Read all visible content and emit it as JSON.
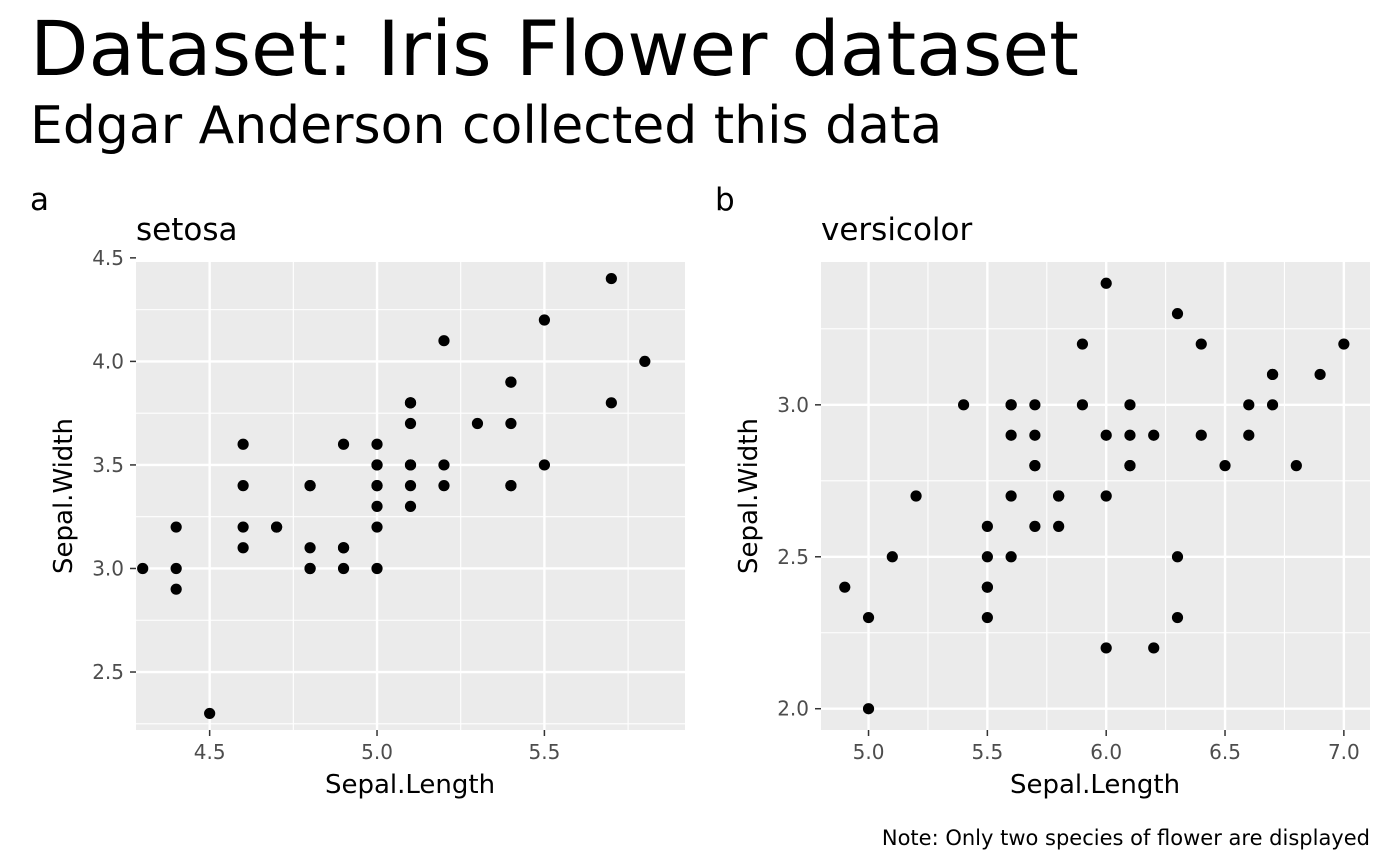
{
  "title": "Dataset: Iris Flower dataset",
  "subtitle": "Edgar Anderson collected this data",
  "caption": "Note: Only two species of flower are displayed",
  "colors": {
    "panel_bg": "#ebebeb",
    "grid": "#ffffff",
    "point": "#000000",
    "tick_text": "#4d4d4d"
  },
  "chart_data": [
    {
      "type": "scatter",
      "tag": "a",
      "title": "setosa",
      "xlabel": "Sepal.Length",
      "ylabel": "Sepal.Width",
      "xlim": [
        4.28,
        5.92
      ],
      "ylim": [
        2.22,
        4.48
      ],
      "xticks": [
        4.5,
        5.0,
        5.5
      ],
      "xtick_labels": [
        "4.5",
        "5.0",
        "5.5"
      ],
      "yticks": [
        2.5,
        3.0,
        3.5,
        4.0,
        4.5
      ],
      "ytick_labels": [
        "2.5",
        "3.0",
        "3.5",
        "4.0",
        "4.5"
      ],
      "grid": true,
      "points": [
        [
          5.1,
          3.5
        ],
        [
          4.9,
          3.0
        ],
        [
          4.7,
          3.2
        ],
        [
          4.6,
          3.1
        ],
        [
          5.0,
          3.6
        ],
        [
          5.4,
          3.9
        ],
        [
          4.6,
          3.4
        ],
        [
          5.0,
          3.4
        ],
        [
          4.4,
          2.9
        ],
        [
          4.9,
          3.1
        ],
        [
          5.4,
          3.7
        ],
        [
          4.8,
          3.4
        ],
        [
          4.8,
          3.0
        ],
        [
          4.3,
          3.0
        ],
        [
          5.8,
          4.0
        ],
        [
          5.7,
          4.4
        ],
        [
          5.4,
          3.9
        ],
        [
          5.1,
          3.5
        ],
        [
          5.7,
          3.8
        ],
        [
          5.1,
          3.8
        ],
        [
          5.4,
          3.4
        ],
        [
          5.1,
          3.7
        ],
        [
          4.6,
          3.6
        ],
        [
          5.1,
          3.3
        ],
        [
          4.8,
          3.4
        ],
        [
          5.0,
          3.0
        ],
        [
          5.0,
          3.4
        ],
        [
          5.2,
          3.5
        ],
        [
          5.2,
          3.4
        ],
        [
          4.7,
          3.2
        ],
        [
          4.8,
          3.1
        ],
        [
          5.4,
          3.4
        ],
        [
          5.2,
          4.1
        ],
        [
          5.5,
          4.2
        ],
        [
          4.9,
          3.1
        ],
        [
          5.0,
          3.2
        ],
        [
          5.5,
          3.5
        ],
        [
          4.9,
          3.6
        ],
        [
          4.4,
          3.0
        ],
        [
          5.1,
          3.4
        ],
        [
          5.0,
          3.5
        ],
        [
          4.5,
          2.3
        ],
        [
          4.4,
          3.2
        ],
        [
          5.0,
          3.5
        ],
        [
          5.1,
          3.8
        ],
        [
          4.8,
          3.0
        ],
        [
          5.1,
          3.8
        ],
        [
          4.6,
          3.2
        ],
        [
          5.3,
          3.7
        ],
        [
          5.0,
          3.3
        ]
      ]
    },
    {
      "type": "scatter",
      "tag": "b",
      "title": "versicolor",
      "xlabel": "Sepal.Length",
      "ylabel": "Sepal.Width",
      "xlim": [
        4.8,
        7.11
      ],
      "ylim": [
        1.93,
        3.47
      ],
      "xticks": [
        5.0,
        5.5,
        6.0,
        6.5,
        7.0
      ],
      "xtick_labels": [
        "5.0",
        "5.5",
        "6.0",
        "6.5",
        "7.0"
      ],
      "yticks": [
        2.0,
        2.5,
        3.0
      ],
      "ytick_labels": [
        "2.0",
        "2.5",
        "3.0"
      ],
      "grid": true,
      "points": [
        [
          7.0,
          3.2
        ],
        [
          6.4,
          3.2
        ],
        [
          6.9,
          3.1
        ],
        [
          5.5,
          2.3
        ],
        [
          6.5,
          2.8
        ],
        [
          5.7,
          2.8
        ],
        [
          6.3,
          3.3
        ],
        [
          4.9,
          2.4
        ],
        [
          6.6,
          2.9
        ],
        [
          5.2,
          2.7
        ],
        [
          5.0,
          2.0
        ],
        [
          5.9,
          3.0
        ],
        [
          6.0,
          2.2
        ],
        [
          6.1,
          2.9
        ],
        [
          5.6,
          2.9
        ],
        [
          6.7,
          3.1
        ],
        [
          5.6,
          3.0
        ],
        [
          5.8,
          2.7
        ],
        [
          6.2,
          2.2
        ],
        [
          5.6,
          2.5
        ],
        [
          5.9,
          3.2
        ],
        [
          6.1,
          2.8
        ],
        [
          6.3,
          2.5
        ],
        [
          6.1,
          2.8
        ],
        [
          6.4,
          2.9
        ],
        [
          6.6,
          3.0
        ],
        [
          6.8,
          2.8
        ],
        [
          6.7,
          3.0
        ],
        [
          6.0,
          2.9
        ],
        [
          5.7,
          2.6
        ],
        [
          5.5,
          2.4
        ],
        [
          5.5,
          2.4
        ],
        [
          5.8,
          2.7
        ],
        [
          6.0,
          2.7
        ],
        [
          5.4,
          3.0
        ],
        [
          6.0,
          3.4
        ],
        [
          6.7,
          3.1
        ],
        [
          6.3,
          2.3
        ],
        [
          5.6,
          3.0
        ],
        [
          5.5,
          2.5
        ],
        [
          5.5,
          2.6
        ],
        [
          6.1,
          3.0
        ],
        [
          5.8,
          2.6
        ],
        [
          5.0,
          2.3
        ],
        [
          5.6,
          2.7
        ],
        [
          5.7,
          3.0
        ],
        [
          5.7,
          2.9
        ],
        [
          6.2,
          2.9
        ],
        [
          5.1,
          2.5
        ],
        [
          5.7,
          2.8
        ]
      ]
    }
  ]
}
